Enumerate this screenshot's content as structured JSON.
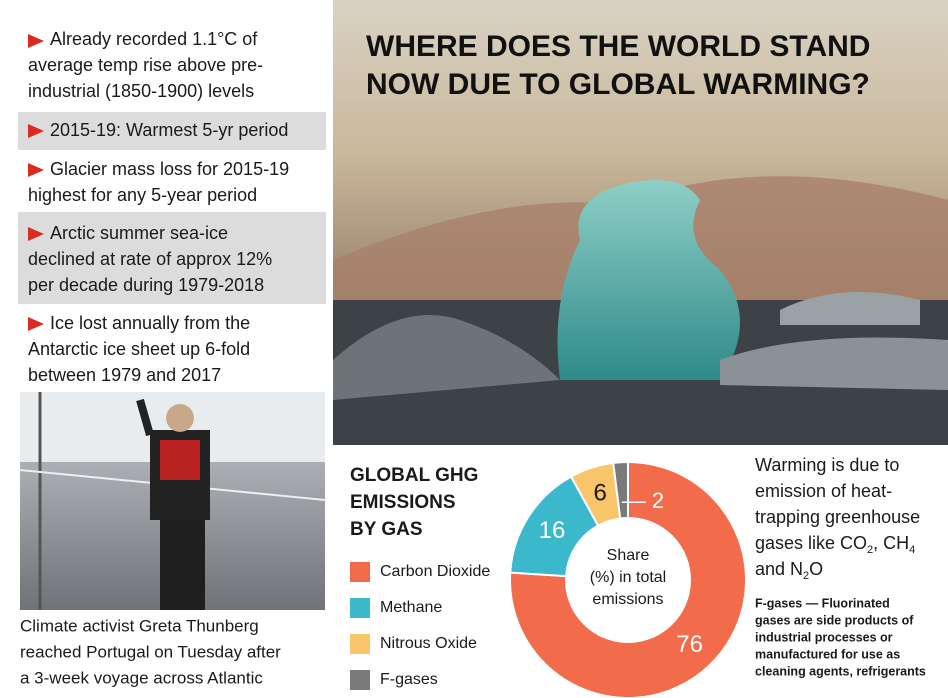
{
  "bullets": [
    [
      "Already recorded 1.1°C of",
      "average temp rise above pre-",
      "industrial (1850-1900) levels"
    ],
    [
      "2015-19: Warmest 5-yr period"
    ],
    [
      "Glacier mass loss for 2015-19",
      "highest for any 5-year period"
    ],
    [
      "Arctic summer sea-ice",
      "declined at rate of approx 12%",
      "per decade during 1979-2018"
    ],
    [
      "Ice lost annually from the",
      "Antarctic ice sheet up 6-fold",
      "between 1979 and 2017"
    ]
  ],
  "photo_caption": [
    "Climate activist Greta Thunberg",
    "reached Portugal on Tuesday after",
    "a 3-week voyage across Atlantic"
  ],
  "headline": [
    "WHERE DOES THE WORLD STAND",
    "NOW DUE TO GLOBAL WARMING?"
  ],
  "chart_data": {
    "type": "pie",
    "title": [
      "GLOBAL GHG",
      "EMISSIONS",
      "BY GAS"
    ],
    "center_label": [
      "Share",
      "(%) in total",
      "emissions"
    ],
    "categories": [
      "Carbon Dioxide",
      "Methane",
      "Nitrous Oxide",
      "F-gases"
    ],
    "values": [
      76,
      16,
      6,
      2
    ],
    "colors": [
      "#f26b4a",
      "#3bb8cc",
      "#f9c56b",
      "#7a7a7a"
    ],
    "donut": true
  },
  "warming_note": [
    [
      "Warming is due to"
    ],
    [
      "emission of heat-"
    ],
    [
      "trapping greenhouse"
    ],
    [
      "gases like CO",
      "2",
      ", CH",
      "4"
    ],
    [
      "and N",
      "2",
      "O"
    ]
  ],
  "fgas_note": [
    "F-gases — Fluorinated",
    "gases are side products of",
    "industrial processes or",
    "manufactured for use as",
    "cleaning agents, refrigerants"
  ]
}
